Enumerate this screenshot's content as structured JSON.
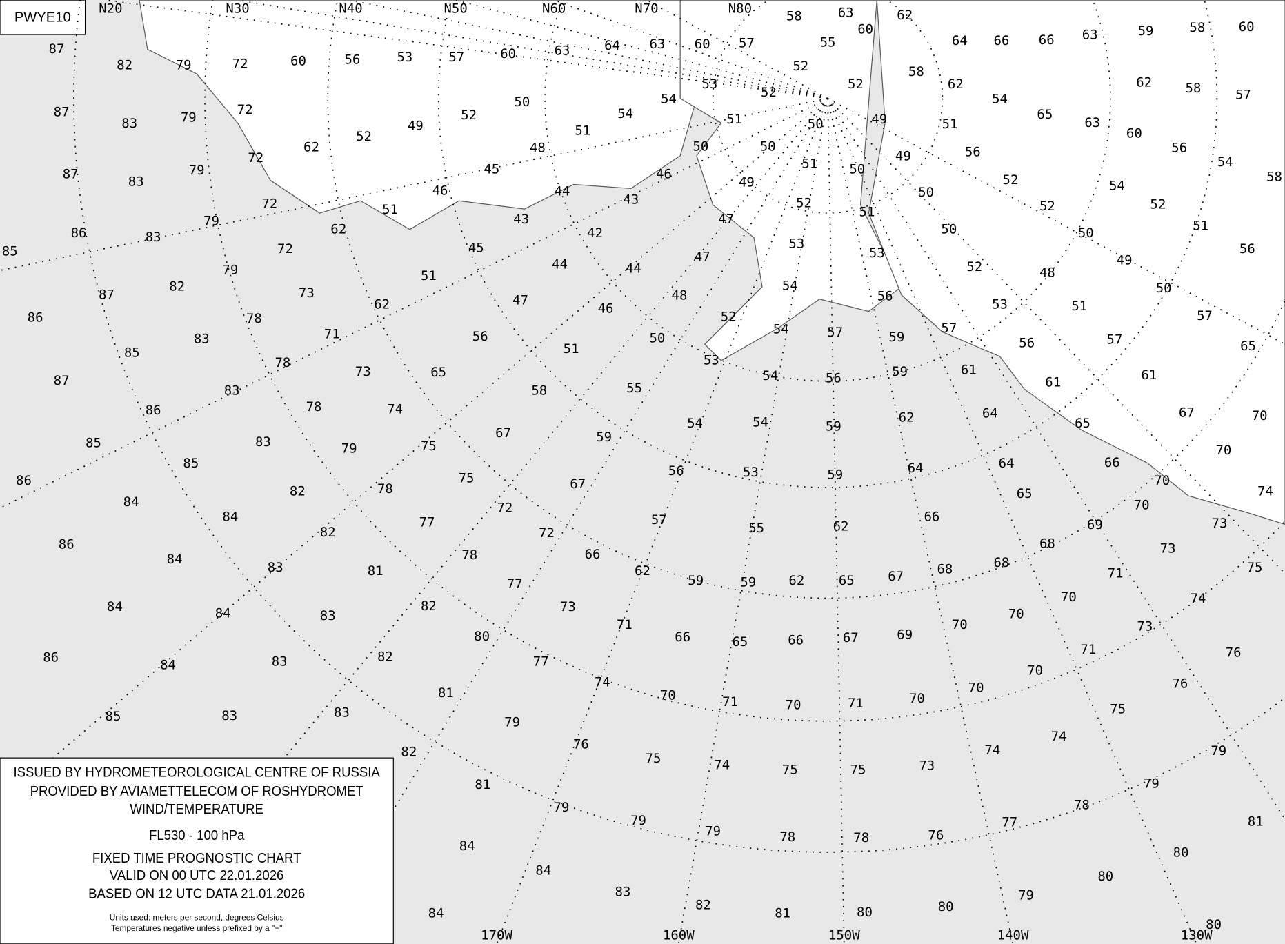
{
  "chart_id": "PWYE10",
  "top_labels": [
    "N20",
    "N30",
    "N40",
    "N50",
    "N60",
    "N70",
    "N80"
  ],
  "bottom_labels": [
    "170W",
    "160W",
    "150W",
    "140W",
    "130W"
  ],
  "info": {
    "lines": [
      "ISSUED BY HYDROMETEOROLOGICAL CENTRE OF RUSSIA",
      "PROVIDED BY AVIAMETTELECOM OF ROSHYDROMET",
      "WIND/TEMPERATURE",
      "FL530 - 100 hPa",
      "FIXED TIME PROGNOSTIC CHART",
      "VALID ON 00 UTC 22.01.2026",
      "BASED ON 12 UTC DATA 21.01.2026"
    ],
    "units": [
      "Units used: meters per second, degrees Celsius",
      "Temperatures negative unless prefixed by a \"+\""
    ]
  },
  "temperatures": [
    87,
    82,
    79,
    72,
    60,
    56,
    53,
    57,
    60,
    63,
    64,
    63,
    60,
    57,
    58,
    63,
    60,
    62,
    55,
    52,
    52,
    52,
    53,
    54,
    54,
    51,
    48,
    45,
    46,
    51,
    62,
    62,
    52,
    49,
    52,
    50,
    72,
    79,
    83,
    87,
    79,
    83,
    87,
    72,
    79,
    83,
    86,
    72,
    85,
    79,
    82,
    87,
    72,
    73,
    86,
    78,
    83,
    85,
    71,
    78,
    83,
    87,
    73,
    78,
    86,
    74,
    79,
    83,
    85,
    75,
    78,
    82,
    85,
    86,
    75,
    77,
    82,
    84,
    84,
    72,
    78,
    81,
    83,
    84,
    86,
    72,
    77,
    82,
    83,
    84,
    84,
    66,
    73,
    80,
    82,
    83,
    84,
    86,
    62,
    71,
    77,
    81,
    83,
    83,
    85,
    74,
    79,
    82,
    76,
    81,
    75,
    79,
    84,
    84,
    84,
    83,
    82,
    81,
    80,
    80,
    79,
    80,
    80,
    80,
    79,
    79,
    78,
    78,
    76,
    77,
    78,
    79,
    81,
    79,
    74,
    75,
    75,
    73,
    74,
    74,
    75,
    76,
    76,
    70,
    71,
    70,
    71,
    70,
    70,
    70,
    71,
    73,
    74,
    75,
    66,
    65,
    66,
    67,
    69,
    70,
    70,
    70,
    71,
    73,
    73,
    70,
    69,
    68,
    68,
    68,
    67,
    65,
    62,
    59,
    59,
    55,
    62,
    66,
    65,
    66,
    70,
    70,
    74,
    64,
    64,
    59,
    53,
    56,
    57,
    64,
    62,
    59,
    54,
    54,
    59,
    67,
    67,
    58,
    65,
    62,
    51,
    45,
    43,
    44,
    42,
    44,
    44,
    43,
    46,
    50,
    51,
    50,
    49,
    47,
    47,
    48,
    52,
    53,
    54,
    54,
    54,
    53,
    52,
    51,
    50,
    50,
    51,
    53,
    56,
    57,
    56,
    59,
    59,
    61,
    57,
    53,
    52,
    50,
    50,
    49,
    49,
    51,
    56,
    52,
    52,
    50,
    48,
    56,
    61,
    65,
    61,
    67,
    70,
    65,
    57,
    57,
    51,
    50,
    49,
    51,
    56,
    52,
    54,
    54,
    58,
    56,
    60,
    63,
    65,
    54,
    62,
    58,
    64,
    66,
    66,
    63,
    59,
    58,
    60,
    62,
    58,
    57,
    55,
    50,
    46,
    51,
    47,
    56
  ]
}
